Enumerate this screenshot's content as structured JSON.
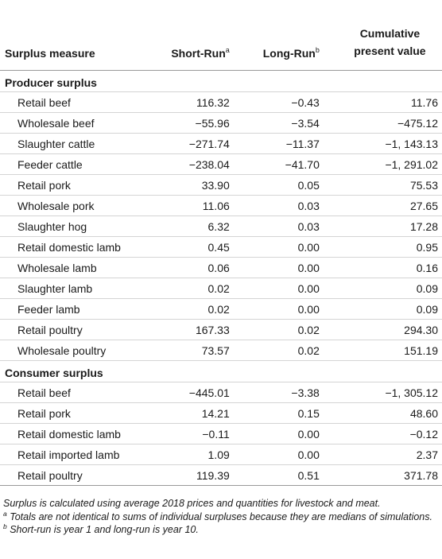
{
  "headers": {
    "measure": "Surplus measure",
    "short_run": "Short-Run",
    "short_run_sup": "a",
    "long_run": "Long-Run",
    "long_run_sup": "b",
    "cumulative_line1": "Cumulative",
    "cumulative_line2": "present value"
  },
  "sections": [
    {
      "title": "Producer surplus",
      "rows": [
        {
          "label": "Retail beef",
          "short": "116.32",
          "long": "−0.43",
          "cum": "11.76"
        },
        {
          "label": "Wholesale beef",
          "short": "−55.96",
          "long": "−3.54",
          "cum": "−475.12"
        },
        {
          "label": "Slaughter cattle",
          "short": "−271.74",
          "long": "−11.37",
          "cum": "−1, 143.13"
        },
        {
          "label": "Feeder cattle",
          "short": "−238.04",
          "long": "−41.70",
          "cum": "−1, 291.02"
        },
        {
          "label": "Retail pork",
          "short": "33.90",
          "long": "0.05",
          "cum": "75.53"
        },
        {
          "label": "Wholesale pork",
          "short": "11.06",
          "long": "0.03",
          "cum": "27.65"
        },
        {
          "label": "Slaughter hog",
          "short": "6.32",
          "long": "0.03",
          "cum": "17.28"
        },
        {
          "label": "Retail domestic lamb",
          "short": "0.45",
          "long": "0.00",
          "cum": "0.95"
        },
        {
          "label": "Wholesale lamb",
          "short": "0.06",
          "long": "0.00",
          "cum": "0.16"
        },
        {
          "label": "Slaughter lamb",
          "short": "0.02",
          "long": "0.00",
          "cum": "0.09"
        },
        {
          "label": "Feeder lamb",
          "short": "0.02",
          "long": "0.00",
          "cum": "0.09"
        },
        {
          "label": "Retail poultry",
          "short": "167.33",
          "long": "0.02",
          "cum": "294.30"
        },
        {
          "label": "Wholesale poultry",
          "short": "73.57",
          "long": "0.02",
          "cum": "151.19"
        }
      ]
    },
    {
      "title": "Consumer surplus",
      "rows": [
        {
          "label": "Retail beef",
          "short": "−445.01",
          "long": "−3.38",
          "cum": "−1, 305.12"
        },
        {
          "label": "Retail pork",
          "short": "14.21",
          "long": "0.15",
          "cum": "48.60"
        },
        {
          "label": "Retail domestic lamb",
          "short": "−0.11",
          "long": "0.00",
          "cum": "−0.12"
        },
        {
          "label": "Retail imported lamb",
          "short": "1.09",
          "long": "0.00",
          "cum": "2.37"
        },
        {
          "label": "Retail poultry",
          "short": "119.39",
          "long": "0.51",
          "cum": "371.78"
        }
      ]
    }
  ],
  "notes": {
    "main": "Surplus is calculated using average 2018 prices and quantities for livestock and meat.",
    "a_mark": "a",
    "a_text": " Totals are not identical to sums of individual surpluses because they are medians of simulations.",
    "b_mark": "b",
    "b_text": " Short-run is year 1 and long-run is year 10."
  }
}
